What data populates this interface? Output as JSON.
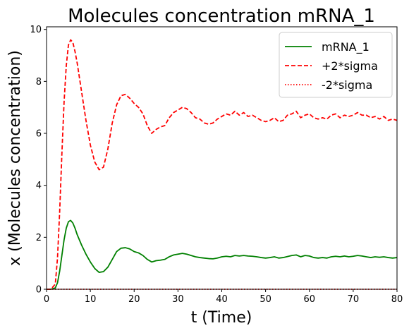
{
  "chart_data": {
    "type": "line",
    "title": "Molecules concentration mRNA_1",
    "xlabel": "t (Time)",
    "ylabel": "x (Molecules concentration)",
    "xlim": [
      0,
      80
    ],
    "ylim": [
      0,
      10.1
    ],
    "xticks": [
      0,
      10,
      20,
      30,
      40,
      50,
      60,
      70,
      80
    ],
    "yticks": [
      0,
      2,
      4,
      6,
      8,
      10
    ],
    "grid": false,
    "legend_position": "top-right",
    "series": [
      {
        "name": "mRNA_1",
        "color": "#008000",
        "style": "solid",
        "x": [
          0,
          1,
          2,
          2.5,
          3,
          3.5,
          4,
          4.5,
          5,
          5.5,
          6,
          6.5,
          7,
          8,
          9,
          10,
          11,
          12,
          13,
          14,
          15,
          16,
          17,
          18,
          19,
          20,
          21,
          22,
          23,
          24,
          25,
          26,
          27,
          28,
          29,
          30,
          31,
          32,
          33,
          34,
          35,
          36,
          37,
          38,
          39,
          40,
          41,
          42,
          43,
          44,
          45,
          46,
          47,
          48,
          49,
          50,
          51,
          52,
          53,
          54,
          55,
          56,
          57,
          58,
          59,
          60,
          61,
          62,
          63,
          64,
          65,
          66,
          67,
          68,
          69,
          70,
          71,
          72,
          73,
          74,
          75,
          76,
          77,
          78,
          79,
          80
        ],
        "y": [
          0,
          0,
          0.05,
          0.25,
          0.7,
          1.3,
          1.9,
          2.35,
          2.6,
          2.65,
          2.55,
          2.35,
          2.1,
          1.7,
          1.35,
          1.05,
          0.8,
          0.65,
          0.68,
          0.85,
          1.15,
          1.45,
          1.58,
          1.6,
          1.55,
          1.45,
          1.4,
          1.3,
          1.15,
          1.05,
          1.1,
          1.12,
          1.15,
          1.25,
          1.32,
          1.35,
          1.38,
          1.35,
          1.3,
          1.25,
          1.22,
          1.2,
          1.18,
          1.17,
          1.2,
          1.25,
          1.27,
          1.25,
          1.3,
          1.28,
          1.3,
          1.28,
          1.27,
          1.25,
          1.22,
          1.2,
          1.22,
          1.25,
          1.2,
          1.22,
          1.26,
          1.3,
          1.32,
          1.25,
          1.3,
          1.28,
          1.22,
          1.2,
          1.22,
          1.2,
          1.25,
          1.27,
          1.25,
          1.28,
          1.25,
          1.27,
          1.3,
          1.28,
          1.25,
          1.22,
          1.25,
          1.23,
          1.25,
          1.22,
          1.2,
          1.22
        ]
      },
      {
        "name": "+2*sigma",
        "color": "#ff0000",
        "style": "dashed",
        "x": [
          0,
          1,
          2,
          2.5,
          3,
          3.5,
          4,
          4.5,
          5,
          5.5,
          6,
          6.5,
          7,
          8,
          9,
          10,
          11,
          12,
          13,
          14,
          15,
          16,
          17,
          18,
          19,
          20,
          21,
          22,
          23,
          24,
          25,
          26,
          27,
          28,
          29,
          30,
          31,
          32,
          33,
          34,
          35,
          36,
          37,
          38,
          39,
          40,
          41,
          42,
          43,
          44,
          45,
          46,
          47,
          48,
          49,
          50,
          51,
          52,
          53,
          54,
          55,
          56,
          57,
          58,
          59,
          60,
          61,
          62,
          63,
          64,
          65,
          66,
          67,
          68,
          69,
          70,
          71,
          72,
          73,
          74,
          75,
          76,
          77,
          78,
          79,
          80
        ],
        "y": [
          0,
          0,
          0.2,
          1.2,
          3.0,
          5.2,
          7.2,
          8.6,
          9.4,
          9.6,
          9.5,
          9.15,
          8.7,
          7.6,
          6.5,
          5.55,
          4.9,
          4.6,
          4.7,
          5.4,
          6.4,
          7.1,
          7.45,
          7.5,
          7.35,
          7.15,
          7.0,
          6.75,
          6.3,
          6.0,
          6.15,
          6.25,
          6.3,
          6.6,
          6.8,
          6.9,
          7.0,
          6.95,
          6.8,
          6.6,
          6.55,
          6.4,
          6.35,
          6.4,
          6.55,
          6.65,
          6.75,
          6.7,
          6.85,
          6.7,
          6.8,
          6.65,
          6.7,
          6.6,
          6.5,
          6.45,
          6.5,
          6.6,
          6.45,
          6.5,
          6.7,
          6.75,
          6.85,
          6.6,
          6.7,
          6.75,
          6.6,
          6.55,
          6.6,
          6.55,
          6.7,
          6.75,
          6.6,
          6.7,
          6.65,
          6.7,
          6.8,
          6.7,
          6.7,
          6.6,
          6.65,
          6.55,
          6.65,
          6.5,
          6.55,
          6.5
        ]
      },
      {
        "name": "-2*sigma",
        "color": "#ff0000",
        "style": "dotted",
        "x": [
          0,
          80
        ],
        "y": [
          0,
          0
        ]
      }
    ]
  }
}
